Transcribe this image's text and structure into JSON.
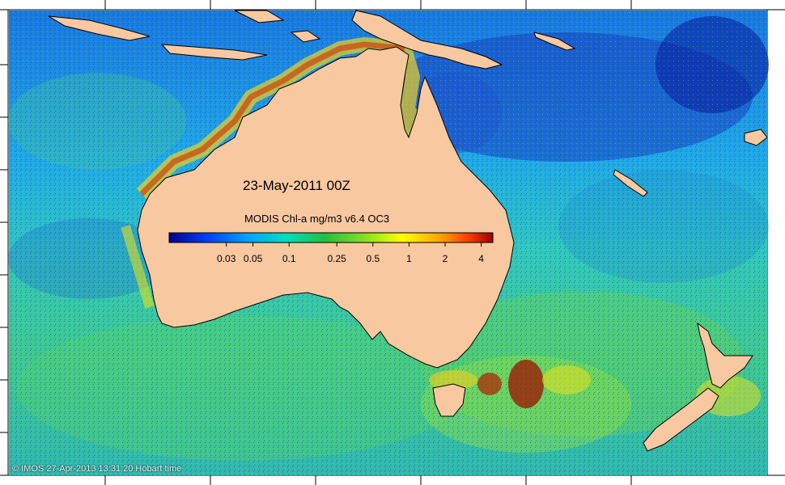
{
  "map": {
    "title": "23-May-2011 00Z",
    "colorbar": {
      "title": "MODIS Chl-a mg/m3 v6.4 OC3",
      "scale": "log",
      "range": [
        0.01,
        5
      ],
      "ticks": [
        {
          "label": "0.03",
          "value": 0.03
        },
        {
          "label": "0.05",
          "value": 0.05
        },
        {
          "label": "0.1",
          "value": 0.1
        },
        {
          "label": "0.25",
          "value": 0.25
        },
        {
          "label": "0.5",
          "value": 0.5
        },
        {
          "label": "1",
          "value": 1
        },
        {
          "label": "2",
          "value": 2
        },
        {
          "label": "4",
          "value": 4
        }
      ],
      "colors": [
        "#00008b",
        "#0040ff",
        "#00a0ff",
        "#00e0c0",
        "#20c040",
        "#80e020",
        "#ffff00",
        "#ffa000",
        "#ff4000",
        "#a00000"
      ]
    },
    "credit": "© IMOS 27-Apr-2013 13:31:20 Hobart time",
    "land_color": "#f8c8a0",
    "ocean_color": "#1fa0d8"
  }
}
